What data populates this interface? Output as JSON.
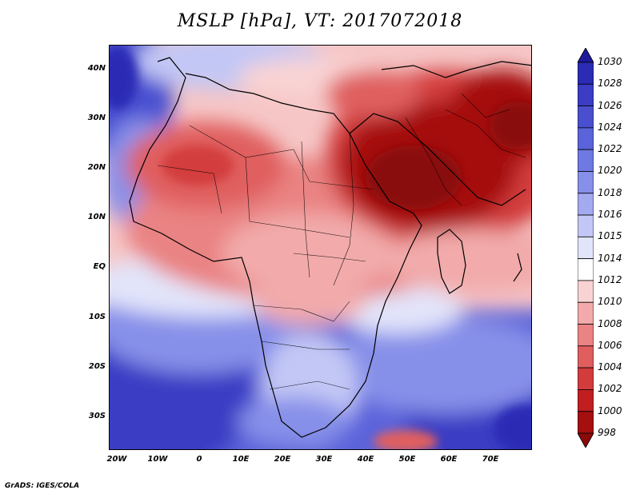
{
  "title": "MSLP [hPa], VT: 2017072018",
  "credit": "GrADS: IGES/COLA",
  "lat_labels": [
    "40N",
    "30N",
    "20N",
    "10N",
    "EQ",
    "10S",
    "20S",
    "30S"
  ],
  "lon_labels": [
    "20W",
    "10W",
    "0",
    "10E",
    "20E",
    "30E",
    "40E",
    "50E",
    "60E",
    "70E"
  ],
  "colorbar": {
    "levels": [
      "1030",
      "1028",
      "1026",
      "1024",
      "1022",
      "1020",
      "1018",
      "1016",
      "1015",
      "1014",
      "1012",
      "1010",
      "1008",
      "1006",
      "1004",
      "1002",
      "1000",
      "998"
    ],
    "colors": [
      "#1d1a9c",
      "#2b2bb5",
      "#3a3cc4",
      "#4a4fd0",
      "#5b63da",
      "#6f79e2",
      "#8790e9",
      "#a4aaf0",
      "#c3c7f5",
      "#e2e4fa",
      "#ffffff",
      "#f9d3d3",
      "#f2aaaa",
      "#ea8383",
      "#e05e5e",
      "#d33c3c",
      "#c11f1f",
      "#a50f0f",
      "#8a0a0a"
    ]
  },
  "chart_data": {
    "type": "heatmap",
    "title": "MSLP [hPa], VT: 2017072018",
    "variable": "Mean sea level pressure",
    "units": "hPa",
    "valid_time": "2017072018",
    "lon_range": [
      -22,
      80
    ],
    "lat_range": [
      -37,
      45
    ],
    "x_ticks": [
      "20W",
      "10W",
      "0",
      "10E",
      "20E",
      "30E",
      "40E",
      "50E",
      "60E",
      "70E"
    ],
    "y_ticks": [
      "40N",
      "30N",
      "20N",
      "10N",
      "EQ",
      "10S",
      "20S",
      "30S"
    ],
    "contour_levels": [
      998,
      1000,
      1002,
      1004,
      1006,
      1008,
      1010,
      1012,
      1014,
      1015,
      1016,
      1018,
      1020,
      1022,
      1024,
      1026,
      1028,
      1030
    ],
    "features": [
      {
        "region": "Arabian Peninsula / Middle East",
        "approx_min_hPa": 998
      },
      {
        "region": "Sahara (Mali/Algeria/Niger)",
        "approx_hPa": 1004
      },
      {
        "region": "South Atlantic high",
        "approx_max_hPa": 1026
      },
      {
        "region": "South Indian Ocean high",
        "approx_max_hPa": 1028
      },
      {
        "region": "Mediterranean / Iberia",
        "approx_hPa": 1016
      }
    ]
  }
}
